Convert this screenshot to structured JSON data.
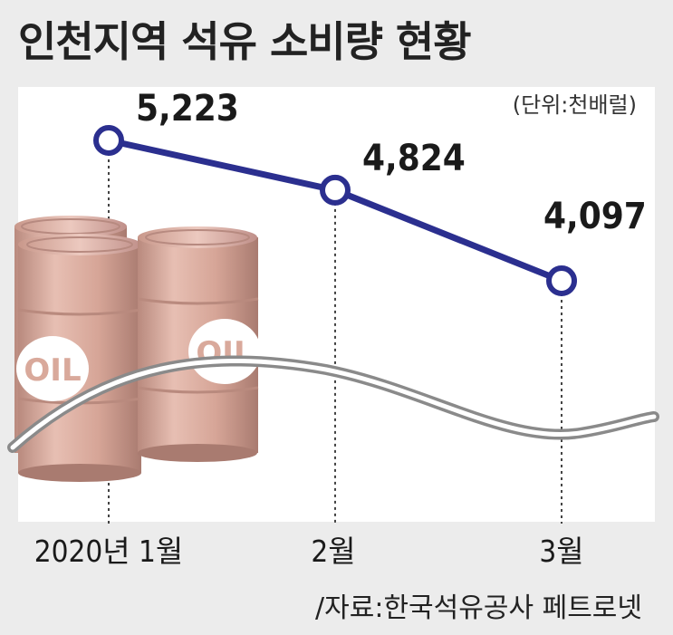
{
  "title": "인천지역 석유 소비량 현황",
  "unit": "(단위:천배럴)",
  "source": "/자료:한국석유공사 페트로넷",
  "decoration": {
    "barrel_label": "OIL",
    "barrel_color": "#d8aa9c",
    "wave_color": "#8a8a8a"
  },
  "chart_data": {
    "type": "line",
    "categories": [
      "2020년 1월",
      "2월",
      "3월"
    ],
    "values": [
      5223,
      4824,
      4097
    ],
    "value_labels": [
      "5,223",
      "4,824",
      "4,097"
    ],
    "line_color": "#2b2f8f",
    "marker_fill": "#ffffff",
    "grid": false,
    "guides": "dotted-vertical"
  }
}
